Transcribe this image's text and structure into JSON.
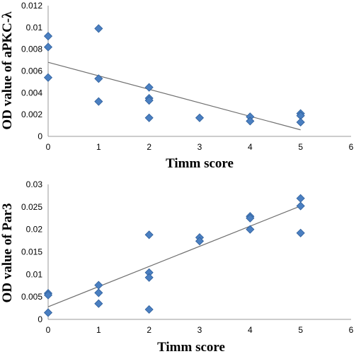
{
  "chart_data": [
    {
      "type": "scatter",
      "title": "",
      "xlabel": "Timm score",
      "ylabel": "OD value of aPKC-λ",
      "xlim": [
        0,
        6
      ],
      "ylim": [
        0,
        0.012
      ],
      "x_ticks": [
        "0",
        "1",
        "2",
        "3",
        "4",
        "5",
        "6"
      ],
      "y_ticks": [
        "0",
        "0.002",
        "0.004",
        "0.006",
        "0.008",
        "0.01",
        "0.012"
      ],
      "grid": false,
      "legend": "none",
      "marker": "diamond",
      "marker_color": "#4a7fc1",
      "trendline": {
        "x": [
          0,
          5
        ],
        "y": [
          0.0068,
          0.0006
        ]
      },
      "points": [
        {
          "x": 0,
          "y": 0.0092
        },
        {
          "x": 0,
          "y": 0.0082
        },
        {
          "x": 0,
          "y": 0.0054
        },
        {
          "x": 1,
          "y": 0.0099
        },
        {
          "x": 1,
          "y": 0.0053
        },
        {
          "x": 1,
          "y": 0.0032
        },
        {
          "x": 2,
          "y": 0.0045
        },
        {
          "x": 2,
          "y": 0.0035
        },
        {
          "x": 2,
          "y": 0.0033
        },
        {
          "x": 2,
          "y": 0.0017
        },
        {
          "x": 3,
          "y": 0.0017
        },
        {
          "x": 4,
          "y": 0.0018
        },
        {
          "x": 4,
          "y": 0.0014
        },
        {
          "x": 5,
          "y": 0.0021
        },
        {
          "x": 5,
          "y": 0.0019
        },
        {
          "x": 5,
          "y": 0.0013
        }
      ]
    },
    {
      "type": "scatter",
      "title": "",
      "xlabel": "Timm score",
      "ylabel": "OD value of Par3",
      "xlim": [
        0,
        6
      ],
      "ylim": [
        0,
        0.03
      ],
      "x_ticks": [
        "0",
        "1",
        "2",
        "3",
        "4",
        "5",
        "6"
      ],
      "y_ticks": [
        "0",
        "0.005",
        "0.01",
        "0.015",
        "0.02",
        "0.025",
        "0.03"
      ],
      "grid": false,
      "legend": "none",
      "marker": "diamond",
      "marker_color": "#4a7fc1",
      "trendline": {
        "x": [
          0,
          5
        ],
        "y": [
          0.0028,
          0.0252
        ]
      },
      "points": [
        {
          "x": 0,
          "y": 0.0058
        },
        {
          "x": 0,
          "y": 0.0054
        },
        {
          "x": 0,
          "y": 0.0015
        },
        {
          "x": 1,
          "y": 0.0076
        },
        {
          "x": 1,
          "y": 0.0059
        },
        {
          "x": 1,
          "y": 0.0035
        },
        {
          "x": 2,
          "y": 0.0188
        },
        {
          "x": 2,
          "y": 0.0104
        },
        {
          "x": 2,
          "y": 0.0093
        },
        {
          "x": 2,
          "y": 0.0022
        },
        {
          "x": 3,
          "y": 0.0182
        },
        {
          "x": 3,
          "y": 0.0174
        },
        {
          "x": 4,
          "y": 0.0229
        },
        {
          "x": 4,
          "y": 0.0225
        },
        {
          "x": 4,
          "y": 0.02
        },
        {
          "x": 5,
          "y": 0.0269
        },
        {
          "x": 5,
          "y": 0.0252
        },
        {
          "x": 5,
          "y": 0.0192
        }
      ]
    }
  ]
}
